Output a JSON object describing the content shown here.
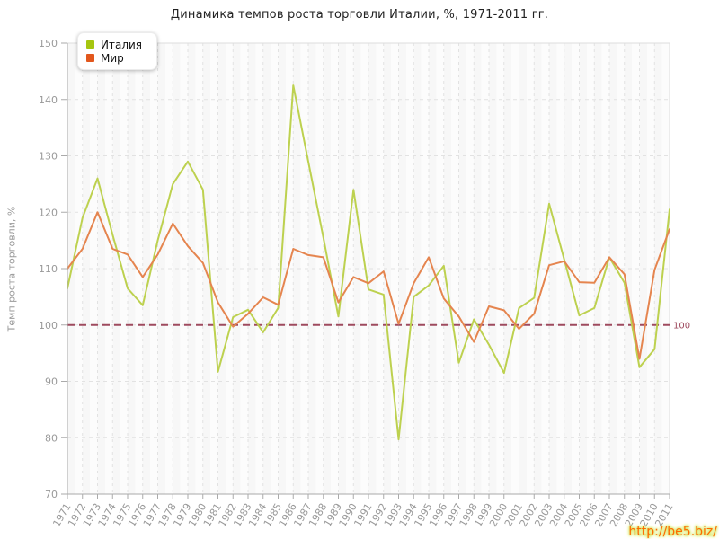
{
  "title": "Динамика темпов роста торговли Италии, %, 1971-2011 гг.",
  "legend": {
    "items": [
      {
        "label": "Италия",
        "color": "#a6c60f"
      },
      {
        "label": "Мир",
        "color": "#e2571d"
      }
    ]
  },
  "y_axis": {
    "title": "Темп роста торговли, %",
    "ticks": [
      150,
      140,
      130,
      120,
      110,
      100,
      90,
      80,
      70
    ]
  },
  "reference_line": {
    "value": 100,
    "label": "100",
    "color": "#9e4a5e"
  },
  "watermark": {
    "text": "http://be5.biz/",
    "color": "#ff6a00",
    "glow": "#cfe44d"
  },
  "chart_data": {
    "type": "line",
    "title": "Динамика темпов роста торговли Италии, %, 1971-2011 гг.",
    "xlabel": "",
    "ylabel": "Темп роста торговли, %",
    "ylim": [
      70,
      150
    ],
    "grid": true,
    "legend_position": "top-left",
    "x": [
      1971,
      1972,
      1973,
      1974,
      1975,
      1976,
      1977,
      1978,
      1979,
      1980,
      1981,
      1982,
      1983,
      1984,
      1985,
      1986,
      1987,
      1988,
      1989,
      1990,
      1991,
      1992,
      1993,
      1994,
      1995,
      1996,
      1997,
      1998,
      1999,
      2000,
      2001,
      2002,
      2003,
      2004,
      2005,
      2006,
      2007,
      2008,
      2009,
      2010,
      2011
    ],
    "series": [
      {
        "name": "Италия",
        "color": "#bdd14f",
        "values": [
          106.5,
          119,
          126,
          116,
          106.5,
          103.5,
          115,
          125,
          129,
          124,
          91.7,
          101.4,
          102.7,
          98.7,
          103,
          142.5,
          129,
          115.5,
          101.5,
          124,
          106.3,
          105.4,
          79.7,
          105,
          107,
          110.5,
          93.3,
          101,
          96.5,
          91.5,
          103,
          104.8,
          121.5,
          111.6,
          101.7,
          103,
          112,
          107.5,
          92.5,
          95.7,
          120.5
        ]
      },
      {
        "name": "Мир",
        "color": "#e5854f",
        "values": [
          110,
          113.5,
          120,
          113.5,
          112.5,
          108.5,
          112.5,
          118,
          114,
          111,
          104,
          99.7,
          102,
          104.9,
          103.6,
          113.5,
          112.4,
          112,
          104,
          108.5,
          107.4,
          109.5,
          100.2,
          107.4,
          112,
          104.7,
          101.5,
          97,
          103.3,
          102.6,
          99.3,
          102,
          110.6,
          111.3,
          107.6,
          107.5,
          112,
          109,
          94,
          109.8,
          117
        ]
      }
    ]
  }
}
